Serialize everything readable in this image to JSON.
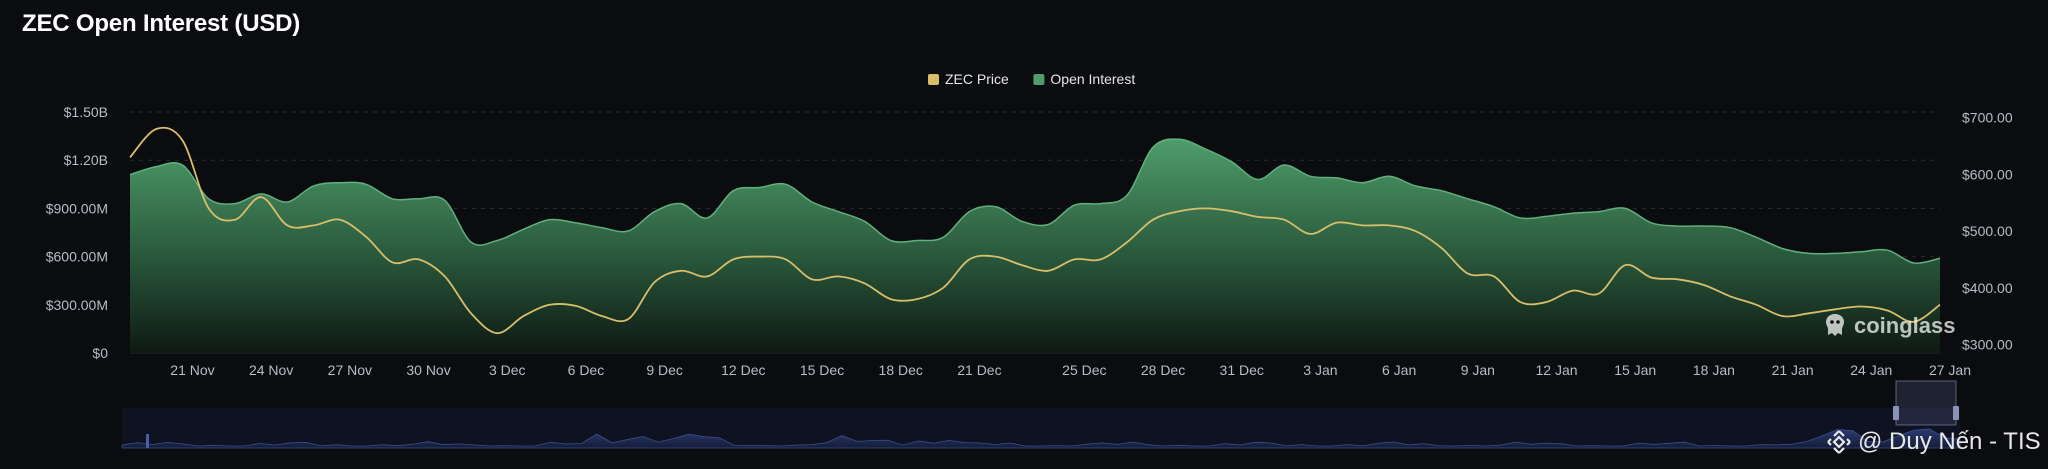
{
  "title": "ZEC Open Interest (USD)",
  "legend": [
    {
      "name": "ZEC Price",
      "color": "#d9be6a"
    },
    {
      "name": "Open Interest",
      "color": "#4f9d6b"
    }
  ],
  "watermark": "coinglass",
  "credit": "@ Duy Nến - TIS",
  "colors": {
    "background": "#0b0c10",
    "price_line": "#d9be6a",
    "oi_fill_top": "#4f9d6b",
    "oi_fill_bottom": "#0e1a13",
    "grid": "#2a2d33",
    "axis_text": "#b8bcc4",
    "navigator": "#1c2a52"
  },
  "chart_data": {
    "type": "area",
    "title": "ZEC Open Interest (USD)",
    "legend_position": "top-center",
    "grid": true,
    "x_ticks": [
      "21 Nov",
      "24 Nov",
      "27 Nov",
      "30 Nov",
      "3 Dec",
      "6 Dec",
      "9 Dec",
      "12 Dec",
      "15 Dec",
      "18 Dec",
      "21 Dec",
      "25 Dec",
      "28 Dec",
      "31 Dec",
      "3 Jan",
      "6 Jan",
      "9 Jan",
      "12 Jan",
      "15 Jan",
      "18 Jan",
      "21 Jan",
      "24 Jan",
      "27 Jan"
    ],
    "y_left": {
      "label": "",
      "ticks": [
        "$0",
        "$300.00M",
        "$600.00M",
        "$900.00M",
        "$1.20B",
        "$1.50B"
      ],
      "range": [
        0,
        1500000000
      ]
    },
    "y_right": {
      "label": "",
      "ticks": [
        "$300.00",
        "$400.00",
        "$500.00",
        "$600.00",
        "$700.00"
      ],
      "range": [
        285,
        710
      ]
    },
    "x_range": [
      "19 Nov",
      "27 Jan"
    ],
    "series": [
      {
        "name": "Open Interest",
        "axis": "left",
        "unit": "USD",
        "x": [
          "19 Nov",
          "20 Nov",
          "21 Nov",
          "22 Nov",
          "23 Nov",
          "24 Nov",
          "25 Nov",
          "26 Nov",
          "27 Nov",
          "28 Nov",
          "29 Nov",
          "30 Nov",
          "1 Dec",
          "2 Dec",
          "3 Dec",
          "4 Dec",
          "5 Dec",
          "6 Dec",
          "7 Dec",
          "8 Dec",
          "9 Dec",
          "10 Dec",
          "11 Dec",
          "12 Dec",
          "13 Dec",
          "14 Dec",
          "15 Dec",
          "16 Dec",
          "17 Dec",
          "18 Dec",
          "19 Dec",
          "20 Dec",
          "21 Dec",
          "22 Dec",
          "23 Dec",
          "24 Dec",
          "25 Dec",
          "26 Dec",
          "27 Dec",
          "28 Dec",
          "29 Dec",
          "30 Dec",
          "31 Dec",
          "1 Jan",
          "2 Jan",
          "3 Jan",
          "4 Jan",
          "5 Jan",
          "6 Jan",
          "7 Jan",
          "8 Jan",
          "9 Jan",
          "10 Jan",
          "11 Jan",
          "12 Jan",
          "13 Jan",
          "14 Jan",
          "15 Jan",
          "16 Jan",
          "17 Jan",
          "18 Jan",
          "19 Jan",
          "20 Jan",
          "21 Jan",
          "22 Jan",
          "23 Jan",
          "24 Jan",
          "25 Jan",
          "26 Jan",
          "27 Jan"
        ],
        "values": [
          1110000000,
          1160000000,
          1170000000,
          960000000,
          930000000,
          990000000,
          940000000,
          1040000000,
          1060000000,
          1050000000,
          960000000,
          960000000,
          950000000,
          690000000,
          700000000,
          770000000,
          830000000,
          810000000,
          780000000,
          760000000,
          880000000,
          930000000,
          840000000,
          1010000000,
          1030000000,
          1050000000,
          940000000,
          880000000,
          820000000,
          700000000,
          700000000,
          720000000,
          880000000,
          910000000,
          820000000,
          800000000,
          920000000,
          930000000,
          980000000,
          1280000000,
          1330000000,
          1270000000,
          1190000000,
          1080000000,
          1170000000,
          1100000000,
          1090000000,
          1060000000,
          1100000000,
          1040000000,
          1010000000,
          960000000,
          910000000,
          840000000,
          850000000,
          870000000,
          880000000,
          900000000,
          810000000,
          790000000,
          790000000,
          780000000,
          720000000,
          650000000,
          620000000,
          620000000,
          630000000,
          640000000,
          560000000,
          590000000
        ]
      },
      {
        "name": "ZEC Price",
        "axis": "right",
        "unit": "USD",
        "x": [
          "19 Nov",
          "20 Nov",
          "21 Nov",
          "22 Nov",
          "23 Nov",
          "24 Nov",
          "25 Nov",
          "26 Nov",
          "27 Nov",
          "28 Nov",
          "29 Nov",
          "30 Nov",
          "1 Dec",
          "2 Dec",
          "3 Dec",
          "4 Dec",
          "5 Dec",
          "6 Dec",
          "7 Dec",
          "8 Dec",
          "9 Dec",
          "10 Dec",
          "11 Dec",
          "12 Dec",
          "13 Dec",
          "14 Dec",
          "15 Dec",
          "16 Dec",
          "17 Dec",
          "18 Dec",
          "19 Dec",
          "20 Dec",
          "21 Dec",
          "22 Dec",
          "23 Dec",
          "24 Dec",
          "25 Dec",
          "26 Dec",
          "27 Dec",
          "28 Dec",
          "29 Dec",
          "30 Dec",
          "31 Dec",
          "1 Jan",
          "2 Jan",
          "3 Jan",
          "4 Jan",
          "5 Jan",
          "6 Jan",
          "7 Jan",
          "8 Jan",
          "9 Jan",
          "10 Jan",
          "11 Jan",
          "12 Jan",
          "13 Jan",
          "14 Jan",
          "15 Jan",
          "16 Jan",
          "17 Jan",
          "18 Jan",
          "19 Jan",
          "20 Jan",
          "21 Jan",
          "22 Jan",
          "23 Jan",
          "24 Jan",
          "25 Jan",
          "26 Jan",
          "27 Jan"
        ],
        "values": [
          630,
          680,
          660,
          540,
          520,
          560,
          510,
          510,
          520,
          490,
          445,
          450,
          420,
          355,
          320,
          350,
          370,
          368,
          350,
          345,
          410,
          430,
          420,
          450,
          455,
          450,
          415,
          420,
          408,
          380,
          380,
          400,
          450,
          455,
          440,
          430,
          450,
          450,
          480,
          520,
          535,
          540,
          535,
          525,
          520,
          495,
          515,
          510,
          510,
          500,
          470,
          425,
          420,
          375,
          375,
          395,
          390,
          440,
          418,
          415,
          405,
          385,
          370,
          350,
          355,
          362,
          367,
          360,
          340,
          370
        ]
      }
    ]
  }
}
